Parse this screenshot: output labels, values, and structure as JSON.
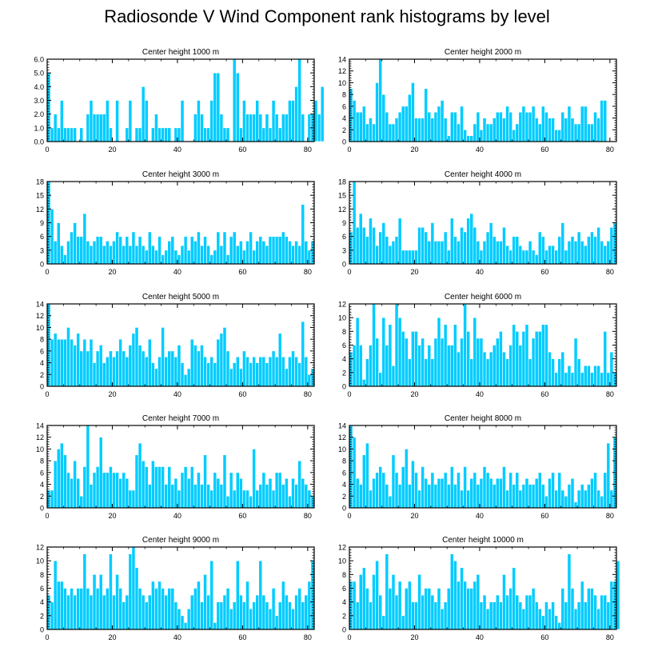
{
  "figure": {
    "title": "Radiosonde V Wind Component rank histograms by level",
    "bar_color": "#00ccff",
    "bar_edge_color": "#ffffff",
    "axis_color": "#000000"
  },
  "chart_data": [
    {
      "type": "bar",
      "title": "Center height 1000 m",
      "xlim": [
        0,
        82
      ],
      "ylim": [
        0,
        6
      ],
      "xticks": [
        0,
        20,
        40,
        60,
        80
      ],
      "yticks": [
        0,
        1,
        2,
        3,
        4,
        5,
        6
      ],
      "yticklabels": [
        "0.0",
        "1.0",
        "2.0",
        "3.0",
        "4.0",
        "5.0",
        "6.0"
      ],
      "values": [
        5,
        1,
        2,
        1,
        3,
        1,
        1,
        1,
        1,
        0,
        1,
        0,
        2,
        3,
        2,
        2,
        2,
        2,
        3,
        1,
        0,
        3,
        0,
        0,
        1,
        3,
        0,
        1,
        1,
        4,
        3,
        0,
        1,
        2,
        1,
        1,
        1,
        1,
        0,
        1,
        1,
        3,
        0,
        0,
        0,
        2,
        3,
        2,
        1,
        1,
        3,
        5,
        5,
        2,
        1,
        1,
        0,
        6,
        5,
        1,
        3,
        2,
        2,
        2,
        3,
        2,
        1,
        2,
        1,
        3,
        2,
        1,
        2,
        2,
        3,
        3,
        4,
        6,
        2,
        0,
        2,
        2,
        3,
        2,
        4
      ],
      "x_start": 0
    },
    {
      "type": "bar",
      "title": "Center height 2000 m",
      "xlim": [
        0,
        82
      ],
      "ylim": [
        0,
        14
      ],
      "xticks": [
        0,
        20,
        40,
        60,
        80
      ],
      "yticks": [
        0,
        2,
        4,
        6,
        8,
        10,
        12,
        14
      ],
      "yticklabels": [
        "0",
        "2",
        "4",
        "6",
        "8",
        "10",
        "12",
        "14"
      ],
      "values": [
        9,
        7,
        5,
        5,
        6,
        3,
        4,
        3,
        10,
        14,
        8,
        5,
        3,
        3,
        4,
        5,
        6,
        6,
        8,
        10,
        4,
        4,
        4,
        9,
        5,
        4,
        5,
        6,
        7,
        4,
        1,
        5,
        5,
        3,
        6,
        2,
        1,
        1,
        3,
        5,
        2,
        4,
        3,
        3,
        4,
        5,
        5,
        4,
        6,
        5,
        2,
        3,
        5,
        6,
        5,
        5,
        6,
        4,
        3,
        6,
        5,
        4,
        4,
        2,
        2,
        5,
        4,
        6,
        4,
        3,
        3,
        6,
        6,
        3,
        3,
        5,
        4,
        7,
        7,
        0,
        0,
        0
      ],
      "x_start": 0
    },
    {
      "type": "bar",
      "title": "Center height 3000 m",
      "xlim": [
        0,
        82
      ],
      "ylim": [
        0,
        18
      ],
      "xticks": [
        0,
        20,
        40,
        60,
        80
      ],
      "yticks": [
        0,
        3,
        6,
        9,
        12,
        15,
        18
      ],
      "yticklabels": [
        "0",
        "3",
        "6",
        "9",
        "12",
        "15",
        "18"
      ],
      "values": [
        18,
        12,
        5,
        9,
        4,
        2,
        5,
        7,
        9,
        6,
        6,
        11,
        5,
        4,
        5,
        6,
        6,
        4,
        5,
        4,
        5,
        7,
        6,
        4,
        6,
        4,
        7,
        4,
        6,
        4,
        3,
        7,
        4,
        3,
        6,
        2,
        3,
        5,
        6,
        3,
        2,
        4,
        6,
        3,
        6,
        5,
        7,
        4,
        6,
        4,
        2,
        3,
        7,
        4,
        7,
        2,
        6,
        7,
        4,
        5,
        3,
        5,
        7,
        3,
        5,
        6,
        5,
        4,
        6,
        6,
        6,
        6,
        7,
        6,
        5,
        4,
        5,
        4,
        13,
        5,
        3,
        5
      ],
      "x_start": 0
    },
    {
      "type": "bar",
      "title": "Center height 4000 m",
      "xlim": [
        0,
        82
      ],
      "ylim": [
        0,
        18
      ],
      "xticks": [
        0,
        20,
        40,
        60,
        80
      ],
      "yticks": [
        0,
        3,
        6,
        9,
        12,
        15,
        18
      ],
      "yticklabels": [
        "0",
        "3",
        "6",
        "9",
        "12",
        "15",
        "18"
      ],
      "values": [
        7,
        18,
        8,
        11,
        8,
        6,
        10,
        8,
        4,
        7,
        9,
        6,
        4,
        5,
        6,
        10,
        3,
        3,
        3,
        3,
        3,
        8,
        8,
        7,
        5,
        9,
        5,
        5,
        5,
        7,
        3,
        10,
        6,
        5,
        8,
        7,
        10,
        11,
        8,
        5,
        3,
        5,
        7,
        9,
        6,
        5,
        5,
        8,
        4,
        3,
        6,
        6,
        4,
        3,
        3,
        5,
        3,
        2,
        7,
        6,
        3,
        4,
        4,
        3,
        6,
        9,
        3,
        5,
        6,
        5,
        7,
        5,
        4,
        6,
        7,
        6,
        8,
        5,
        4,
        5,
        8,
        9
      ],
      "x_start": 0
    },
    {
      "type": "bar",
      "title": "Center height 5000 m",
      "xlim": [
        0,
        82
      ],
      "ylim": [
        0,
        14
      ],
      "xticks": [
        0,
        20,
        40,
        60,
        80
      ],
      "yticks": [
        0,
        2,
        4,
        6,
        8,
        10,
        12,
        14
      ],
      "yticklabels": [
        "0",
        "2",
        "4",
        "6",
        "8",
        "10",
        "12",
        "14"
      ],
      "values": [
        14,
        8,
        9,
        8,
        8,
        8,
        10,
        8,
        7,
        9,
        6,
        8,
        6,
        8,
        4,
        6,
        7,
        4,
        5,
        6,
        5,
        6,
        8,
        6,
        5,
        7,
        9,
        10,
        7,
        6,
        5,
        8,
        4,
        3,
        5,
        10,
        5,
        6,
        6,
        5,
        7,
        4,
        2,
        3,
        8,
        7,
        6,
        7,
        5,
        4,
        5,
        4,
        8,
        9,
        10,
        6,
        3,
        4,
        5,
        3,
        6,
        5,
        4,
        5,
        4,
        5,
        5,
        4,
        5,
        6,
        5,
        9,
        5,
        3,
        5,
        6,
        5,
        4,
        11,
        5,
        2,
        3
      ],
      "x_start": 0
    },
    {
      "type": "bar",
      "title": "Center height 6000 m",
      "xlim": [
        0,
        82
      ],
      "ylim": [
        0,
        12
      ],
      "xticks": [
        0,
        20,
        40,
        60,
        80
      ],
      "yticks": [
        0,
        2,
        4,
        6,
        8,
        10,
        12
      ],
      "yticklabels": [
        "0",
        "2",
        "4",
        "6",
        "8",
        "10",
        "12"
      ],
      "values": [
        5,
        6,
        10,
        6,
        1,
        4,
        6,
        12,
        7,
        2,
        10,
        6,
        9,
        3,
        12,
        10,
        8,
        7,
        4,
        8,
        8,
        6,
        7,
        4,
        6,
        4,
        7,
        10,
        7,
        9,
        6,
        6,
        9,
        5,
        7,
        12,
        8,
        4,
        10,
        7,
        7,
        5,
        4,
        5,
        6,
        7,
        8,
        5,
        4,
        6,
        9,
        8,
        6,
        8,
        9,
        4,
        7,
        8,
        8,
        9,
        9,
        5,
        4,
        2,
        4,
        5,
        2,
        3,
        2,
        7,
        4,
        2,
        3,
        3,
        2,
        3,
        3,
        2,
        8,
        2,
        5,
        2
      ],
      "x_start": 0
    },
    {
      "type": "bar",
      "title": "Center height 7000 m",
      "xlim": [
        0,
        82
      ],
      "ylim": [
        0,
        14
      ],
      "xticks": [
        0,
        20,
        40,
        60,
        80
      ],
      "yticks": [
        0,
        2,
        4,
        6,
        8,
        10,
        12,
        14
      ],
      "yticklabels": [
        "0",
        "2",
        "4",
        "6",
        "8",
        "10",
        "12",
        "14"
      ],
      "values": [
        3,
        3,
        8,
        10,
        11,
        9,
        6,
        5,
        8,
        5,
        2,
        7,
        14,
        4,
        6,
        7,
        12,
        6,
        6,
        7,
        6,
        6,
        5,
        6,
        5,
        3,
        3,
        9,
        11,
        8,
        7,
        4,
        8,
        7,
        7,
        7,
        4,
        7,
        4,
        5,
        3,
        6,
        7,
        5,
        7,
        4,
        6,
        4,
        9,
        4,
        3,
        6,
        5,
        4,
        9,
        2,
        6,
        3,
        6,
        5,
        3,
        3,
        2,
        10,
        3,
        4,
        6,
        4,
        5,
        3,
        6,
        6,
        4,
        5,
        2,
        5,
        4,
        8,
        5,
        4,
        3,
        2
      ],
      "x_start": 0
    },
    {
      "type": "bar",
      "title": "Center height 8000 m",
      "xlim": [
        0,
        82
      ],
      "ylim": [
        0,
        14
      ],
      "xticks": [
        0,
        20,
        40,
        60,
        80
      ],
      "yticks": [
        0,
        2,
        4,
        6,
        8,
        10,
        12,
        14
      ],
      "yticklabels": [
        "0",
        "2",
        "4",
        "6",
        "8",
        "10",
        "12",
        "14"
      ],
      "values": [
        14,
        12,
        5,
        4,
        9,
        11,
        3,
        5,
        6,
        7,
        6,
        4,
        2,
        9,
        6,
        4,
        7,
        10,
        4,
        8,
        6,
        3,
        7,
        5,
        4,
        6,
        4,
        5,
        5,
        6,
        4,
        7,
        4,
        6,
        3,
        7,
        3,
        5,
        6,
        4,
        5,
        7,
        6,
        5,
        4,
        5,
        5,
        7,
        3,
        6,
        4,
        6,
        3,
        4,
        5,
        4,
        4,
        5,
        6,
        4,
        2,
        5,
        6,
        3,
        6,
        3,
        2,
        4,
        5,
        1,
        3,
        4,
        3,
        4,
        5,
        6,
        3,
        2,
        6,
        11,
        3,
        12
      ],
      "x_start": 0
    },
    {
      "type": "bar",
      "title": "Center height 9000 m",
      "xlim": [
        0,
        82
      ],
      "ylim": [
        0,
        12
      ],
      "xticks": [
        0,
        20,
        40,
        60,
        80
      ],
      "yticks": [
        0,
        2,
        4,
        6,
        8,
        10,
        12
      ],
      "yticklabels": [
        "0",
        "2",
        "4",
        "6",
        "8",
        "10",
        "12"
      ],
      "values": [
        5,
        4,
        10,
        7,
        7,
        6,
        5,
        6,
        5,
        6,
        6,
        11,
        6,
        5,
        8,
        6,
        8,
        5,
        6,
        11,
        5,
        8,
        6,
        4,
        5,
        11,
        12,
        9,
        6,
        5,
        4,
        5,
        7,
        6,
        7,
        6,
        5,
        6,
        6,
        4,
        3,
        2,
        1,
        3,
        5,
        6,
        7,
        4,
        8,
        5,
        10,
        1,
        4,
        4,
        5,
        6,
        3,
        4,
        10,
        5,
        4,
        7,
        3,
        4,
        5,
        10,
        5,
        4,
        3,
        6,
        2,
        4,
        7,
        5,
        4,
        3,
        5,
        6,
        4,
        5,
        7,
        10
      ],
      "x_start": 0
    },
    {
      "type": "bar",
      "title": "Center height 10000 m",
      "xlim": [
        0,
        82
      ],
      "ylim": [
        0,
        12
      ],
      "xticks": [
        0,
        20,
        40,
        60,
        80
      ],
      "yticks": [
        0,
        2,
        4,
        6,
        8,
        10,
        12
      ],
      "yticklabels": [
        "0",
        "2",
        "4",
        "6",
        "8",
        "10",
        "12"
      ],
      "values": [
        7,
        7,
        4,
        8,
        9,
        6,
        4,
        8,
        10,
        5,
        2,
        11,
        6,
        8,
        5,
        7,
        2,
        6,
        7,
        4,
        4,
        8,
        5,
        6,
        6,
        5,
        4,
        6,
        3,
        4,
        6,
        11,
        10,
        7,
        9,
        7,
        6,
        6,
        7,
        8,
        4,
        5,
        3,
        4,
        4,
        5,
        4,
        8,
        5,
        6,
        9,
        5,
        4,
        3,
        5,
        5,
        6,
        4,
        3,
        2,
        4,
        3,
        4,
        2,
        1,
        6,
        4,
        11,
        6,
        3,
        4,
        7,
        4,
        6,
        6,
        5,
        3,
        5,
        5,
        4,
        7,
        7,
        10
      ],
      "x_start": 0
    }
  ]
}
